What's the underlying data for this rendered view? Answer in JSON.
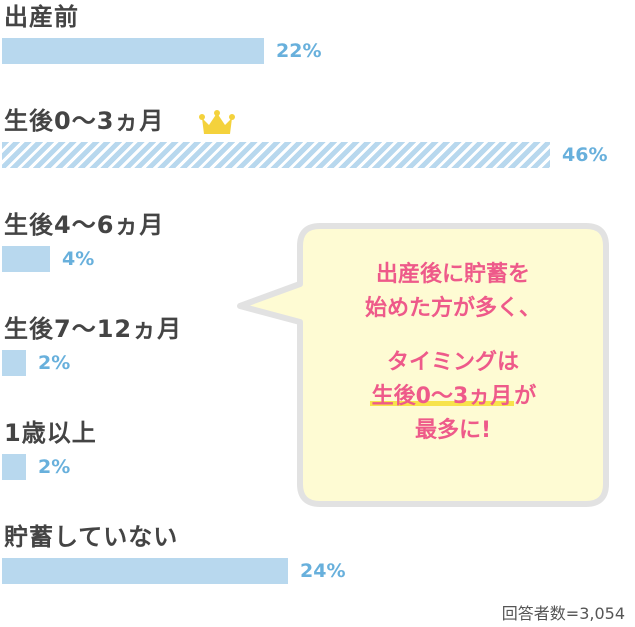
{
  "chart_data": {
    "type": "bar",
    "orientation": "horizontal",
    "categories": [
      "出産前",
      "生後0〜3ヵ月",
      "生後4〜6ヵ月",
      "生後7〜12ヵ月",
      "1歳以上",
      "貯蓄していない"
    ],
    "values": [
      22,
      46,
      4,
      2,
      2,
      24
    ],
    "value_labels": [
      "22%",
      "46%",
      "4%",
      "2%",
      "2%",
      "24%"
    ],
    "highlight_index": 1,
    "xlim": [
      0,
      46
    ],
    "bar_color": "#b8d8ee",
    "label_color": "#68b0dc",
    "crown_color": "#f4d23c"
  },
  "callout": {
    "line1": "出産後に貯蓄を",
    "line2": "始めた方が多く、",
    "line3": "タイミングは",
    "line4_highlight": "生後0〜3ヵ月",
    "line4_rest": "が",
    "line5": "最多に!"
  },
  "footer": {
    "note": "回答者数=3,054"
  }
}
